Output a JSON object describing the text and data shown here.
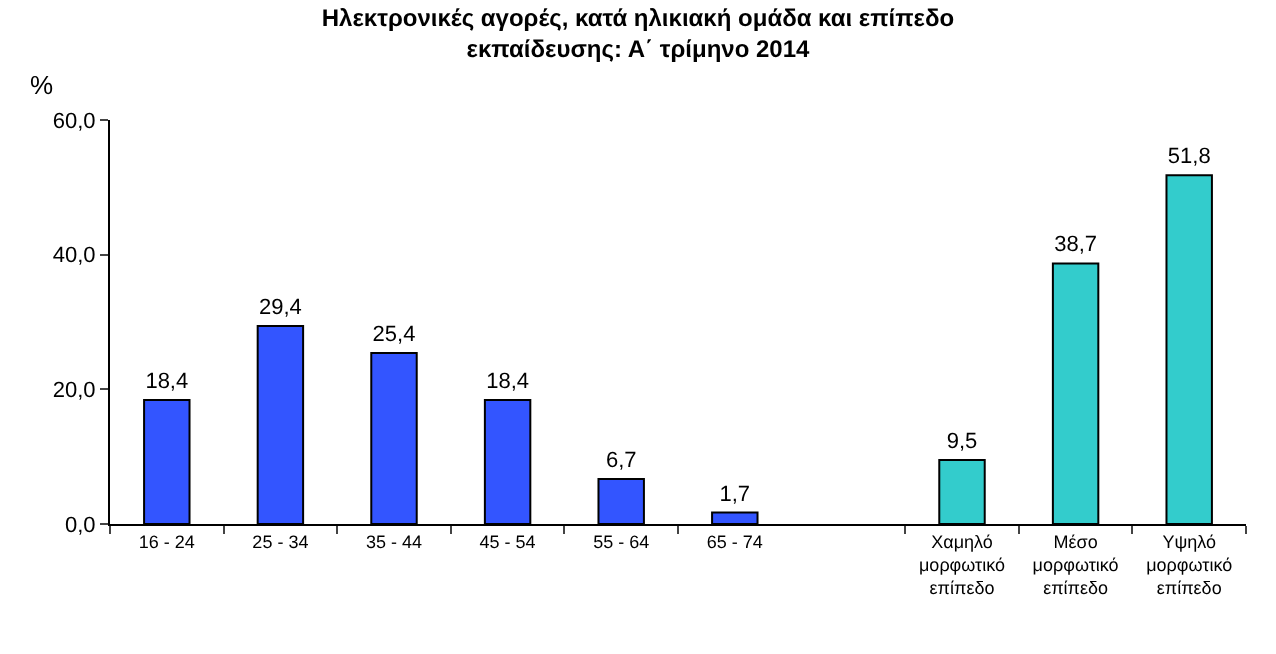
{
  "chart_data": {
    "type": "bar",
    "title": "Ηλεκτρονικές αγορές, κατά ηλικιακή ομάδα και επίπεδο\nεκπαίδευσης: Α΄ τρίμηνο 2014",
    "ylabel": "%",
    "categories": [
      "16 - 24",
      "25 - 34",
      "35 - 44",
      "45 - 54",
      "55 - 64",
      "65 - 74",
      null,
      "Χαμηλό\nμορφωτικό\nεπίπεδο",
      "Μέσο\nμορφωτικό\nεπίπεδο",
      "Υψηλό\nμορφωτικό\nεπίπεδο"
    ],
    "values": [
      18.4,
      29.4,
      25.4,
      18.4,
      6.7,
      1.7,
      null,
      9.5,
      38.7,
      51.8
    ],
    "value_labels": [
      "18,4",
      "29,4",
      "25,4",
      "18,4",
      "6,7",
      "1,7",
      null,
      "9,5",
      "38,7",
      "51,8"
    ],
    "colors": [
      "#3355ff",
      "#3355ff",
      "#3355ff",
      "#3355ff",
      "#3355ff",
      "#3355ff",
      "#3355ff",
      "#33cccc",
      "#33cccc",
      "#33cccc"
    ],
    "ylim": [
      0,
      60
    ],
    "yticks": [
      {
        "value": 0,
        "label": "0,0"
      },
      {
        "value": 20,
        "label": "20,0"
      },
      {
        "value": 40,
        "label": "40,0"
      },
      {
        "value": 60,
        "label": "60,0"
      }
    ],
    "legend": false
  }
}
